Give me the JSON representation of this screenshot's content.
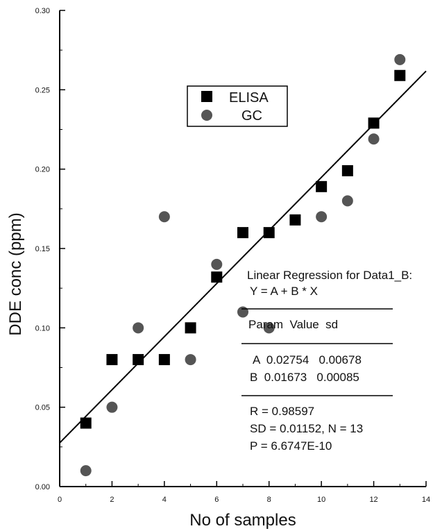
{
  "chart_data": {
    "type": "scatter",
    "title": "",
    "xlabel": "No of samples",
    "ylabel": "DDE conc (ppm)",
    "xlim": [
      0,
      14
    ],
    "ylim": [
      0,
      0.3
    ],
    "x_ticks": [
      "0",
      "2",
      "4",
      "6",
      "8",
      "10",
      "12",
      "14"
    ],
    "y_ticks": [
      "0.00",
      "0.05",
      "0.10",
      "0.15",
      "0.20",
      "0.25",
      "0.30"
    ],
    "grid": false,
    "legend_position": "top-center",
    "series": [
      {
        "name": "ELISA",
        "marker": "square",
        "color": "#000000",
        "x": [
          1,
          2,
          3,
          4,
          5,
          6,
          7,
          8,
          9,
          10,
          11,
          12,
          13
        ],
        "y": [
          0.04,
          0.08,
          0.08,
          0.08,
          0.1,
          0.132,
          0.16,
          0.16,
          0.168,
          0.189,
          0.199,
          0.229,
          0.259
        ]
      },
      {
        "name": "GC",
        "marker": "circle",
        "color": "#555555",
        "x": [
          1,
          2,
          3,
          4,
          5,
          6,
          7,
          8,
          10,
          11,
          12,
          13
        ],
        "y": [
          0.01,
          0.05,
          0.1,
          0.17,
          0.08,
          0.14,
          0.11,
          0.1,
          0.17,
          0.18,
          0.219,
          0.269
        ]
      }
    ],
    "regression": {
      "intercept": 0.02754,
      "slope": 0.01673,
      "x_range": [
        0,
        14
      ]
    },
    "annotation": {
      "title": "Linear Regression for Data1_B:",
      "equation": "Y = A + B * X",
      "header": "Param  Value  sd",
      "row_a": "A  0.02754   0.00678",
      "row_b": "B  0.01673   0.00085",
      "r": "R = 0.98597",
      "sd": "SD = 0.01152, N = 13",
      "p": "P = 6.6747E-10"
    }
  }
}
